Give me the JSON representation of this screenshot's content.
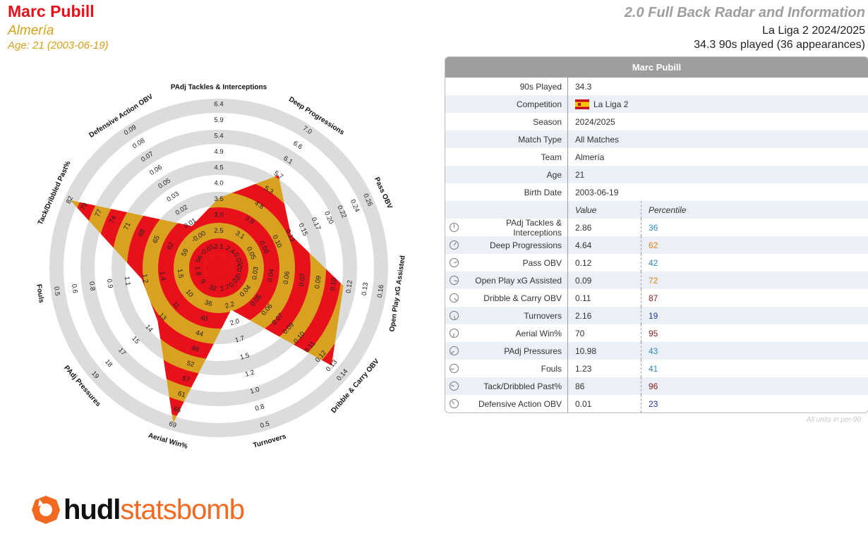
{
  "header": {
    "player_name": "Marc Pubill",
    "team": "Almería",
    "age_line": "Age: 21 (2003-06-19)",
    "report_title": "2.0 Full Back Radar and Information",
    "competition_line": "La Liga 2 2024/2025",
    "played_line": "34.3 90s played (36 appearances)"
  },
  "table": {
    "title": "Marc Pubill",
    "info_rows": [
      {
        "label": "90s Played",
        "value": "34.3"
      },
      {
        "label": "Competition",
        "value": "La Liga 2"
      },
      {
        "label": "Season",
        "value": "2024/2025"
      },
      {
        "label": "Match Type",
        "value": "All Matches"
      },
      {
        "label": "Team",
        "value": "Almería"
      },
      {
        "label": "Age",
        "value": "21"
      },
      {
        "label": "Birth Date",
        "value": "2003-06-19"
      }
    ],
    "value_header": "Value",
    "percentile_header": "Percentile",
    "metric_rows": [
      {
        "label": "PAdj Tackles & Interceptions",
        "value": "2.86",
        "percentile": "36",
        "color": "#2b8cbe"
      },
      {
        "label": "Deep Progressions",
        "value": "4.64",
        "percentile": "62",
        "color": "#e08214"
      },
      {
        "label": "Pass OBV",
        "value": "0.12",
        "percentile": "42",
        "color": "#2b8cbe"
      },
      {
        "label": "Open Play xG Assisted",
        "value": "0.09",
        "percentile": "72",
        "color": "#e08214"
      },
      {
        "label": "Dribble & Carry OBV",
        "value": "0.11",
        "percentile": "87",
        "color": "#8b1a1a"
      },
      {
        "label": "Turnovers",
        "value": "2.16",
        "percentile": "19",
        "color": "#1f3a93"
      },
      {
        "label": "Aerial Win%",
        "value": "70",
        "percentile": "95",
        "color": "#8b1a1a"
      },
      {
        "label": "PAdj Pressures",
        "value": "10.98",
        "percentile": "43",
        "color": "#2b8cbe"
      },
      {
        "label": "Fouls",
        "value": "1.23",
        "percentile": "41",
        "color": "#2b8cbe"
      },
      {
        "label": "Tack/Dribbled Past%",
        "value": "86",
        "percentile": "96",
        "color": "#8b1a1a"
      },
      {
        "label": "Defensive Action OBV",
        "value": "0.01",
        "percentile": "23",
        "color": "#1f3a93"
      }
    ],
    "footnote": "All units in per-90"
  },
  "logo": {
    "word1": "hudl",
    "word2": "statsbomb"
  },
  "chart_data": {
    "type": "radar",
    "axes": [
      {
        "label": "PAdj Tackles & Interceptions",
        "ticks": [
          "2.1",
          "2.5",
          "3.0",
          "3.5",
          "4.0",
          "4.5",
          "4.9",
          "5.4",
          "5.9",
          "6.4"
        ],
        "percentile": 36
      },
      {
        "label": "Deep Progressions",
        "ticks": [
          "2.4",
          "3.1",
          "3.9",
          "4.8",
          "5.3",
          "5.7",
          "6.1",
          "6.6",
          "7.0"
        ],
        "percentile": 62
      },
      {
        "label": "Pass OBV",
        "ticks": [
          "0.03",
          "0.05",
          "0.08",
          "0.10",
          "0.13",
          "0.15",
          "0.17",
          "0.20",
          "0.22",
          "0.24",
          "0.26"
        ],
        "percentile": 42
      },
      {
        "label": "Open Play xG Assisted",
        "ticks": [
          "0.02",
          "0.03",
          "0.04",
          "0.06",
          "0.07",
          "0.09",
          "0.10",
          "0.12",
          "0.13",
          "0.16"
        ],
        "percentile": 72
      },
      {
        "label": "Dribble & Carry OBV",
        "ticks": [
          "0.02",
          "0.04",
          "0.05",
          "0.06",
          "0.07",
          "0.09",
          "0.10",
          "0.11",
          "0.12",
          "0.13",
          "0.14"
        ],
        "percentile": 87
      },
      {
        "label": "Turnovers",
        "ticks": [
          "2.7",
          "2.2",
          "2.0",
          "1.7",
          "1.5",
          "1.2",
          "1.0",
          "0.8",
          "0.5"
        ],
        "percentile": 19
      },
      {
        "label": "Aerial Win%",
        "ticks": [
          "32",
          "36",
          "40",
          "44",
          "48",
          "52",
          "57",
          "61",
          "65",
          "69"
        ],
        "percentile": 95
      },
      {
        "label": "PAdj Pressures",
        "ticks": [
          "9",
          "10",
          "11",
          "13",
          "14",
          "15",
          "17",
          "18",
          "19"
        ],
        "percentile": 43
      },
      {
        "label": "Fouls",
        "ticks": [
          "1.8",
          "1.5",
          "1.4",
          "1.2",
          "1.1",
          "0.9",
          "0.8",
          "0.6",
          "0.5"
        ],
        "percentile": 41
      },
      {
        "label": "Tack/Dribbled Past%",
        "ticks": [
          "56",
          "59",
          "62",
          "65",
          "68",
          "71",
          "74",
          "77",
          "79",
          "82"
        ],
        "percentile": 96
      },
      {
        "label": "Defensive Action OBV",
        "ticks": [
          "-0.01",
          "-0.00",
          "0.01",
          "0.02",
          "0.03",
          "0.05",
          "0.06",
          "0.07",
          "0.08",
          "0.09"
        ],
        "percentile": 23
      }
    ],
    "colors": {
      "fill_a": "#e8101a",
      "fill_b": "#d8a11f",
      "ring": "#dcdcdc"
    }
  }
}
